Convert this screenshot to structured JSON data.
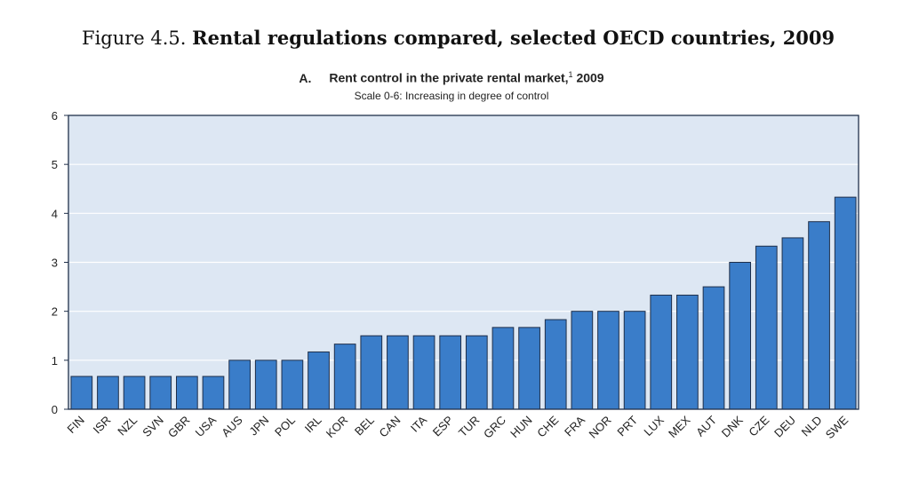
{
  "figure": {
    "label": "Figure 4.5.",
    "title": "Rental regulations compared, selected OECD countries, 2009"
  },
  "panel": {
    "letter": "A.",
    "title": "Rent control in the private rental market,",
    "footnote_marker": "1",
    "year": "2009",
    "subtitle": "Scale 0-6: Increasing in degree  of control"
  },
  "colors": {
    "bar_fill": "#3A7DC9",
    "bar_stroke": "#1f2f4a",
    "plot_bg": "#DDE7F3",
    "grid": "#ffffff",
    "axis": "#1f2f4a"
  },
  "chart_data": {
    "type": "bar",
    "categories": [
      "FIN",
      "ISR",
      "NZL",
      "SVN",
      "GBR",
      "USA",
      "AUS",
      "JPN",
      "POL",
      "IRL",
      "KOR",
      "BEL",
      "CAN",
      "ITA",
      "ESP",
      "TUR",
      "GRC",
      "HUN",
      "CHE",
      "FRA",
      "NOR",
      "PRT",
      "LUX",
      "MEX",
      "AUT",
      "DNK",
      "CZE",
      "DEU",
      "NLD",
      "SWE"
    ],
    "values": [
      0.67,
      0.67,
      0.67,
      0.67,
      0.67,
      0.67,
      1.0,
      1.0,
      1.0,
      1.17,
      1.33,
      1.5,
      1.5,
      1.5,
      1.5,
      1.5,
      1.67,
      1.67,
      1.83,
      2.0,
      2.0,
      2.0,
      2.33,
      2.33,
      2.5,
      3.0,
      3.33,
      3.5,
      3.83,
      4.33
    ],
    "ylim": [
      0,
      6
    ],
    "yticks": [
      0,
      1,
      2,
      3,
      4,
      5,
      6
    ],
    "grid": true,
    "legend": "none",
    "xlabel": "",
    "ylabel": ""
  }
}
